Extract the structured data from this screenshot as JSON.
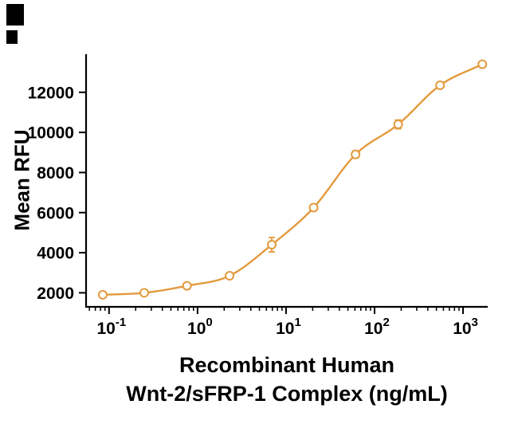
{
  "chart_data": {
    "type": "scatter",
    "curve": "smooth-sigmoid-fit",
    "x": [
      0.085,
      0.25,
      0.76,
      2.3,
      6.9,
      20.5,
      61,
      185,
      550,
      1650
    ],
    "y": [
      1900,
      2000,
      2350,
      2850,
      4400,
      6250,
      8900,
      10400,
      12350,
      13400
    ],
    "yerr": [
      80,
      50,
      70,
      140,
      360,
      140,
      180,
      220,
      90,
      70
    ],
    "ylabel": "Mean RFU",
    "xlabel_line1": "Recombinant Human",
    "xlabel_line2": "Wnt-2/sFRP-1 Complex (ng/mL)",
    "xscale": "log",
    "xlim": [
      0.055,
      1900
    ],
    "ylim": [
      1300,
      13900
    ],
    "xticks": [
      0.1,
      1,
      10,
      100,
      1000
    ],
    "yticks": [
      2000,
      4000,
      6000,
      8000,
      10000,
      12000
    ],
    "line_color": "#E39A3D",
    "axis_color": "#000000",
    "marker": "open-circle",
    "grid": false,
    "legend": null
  }
}
